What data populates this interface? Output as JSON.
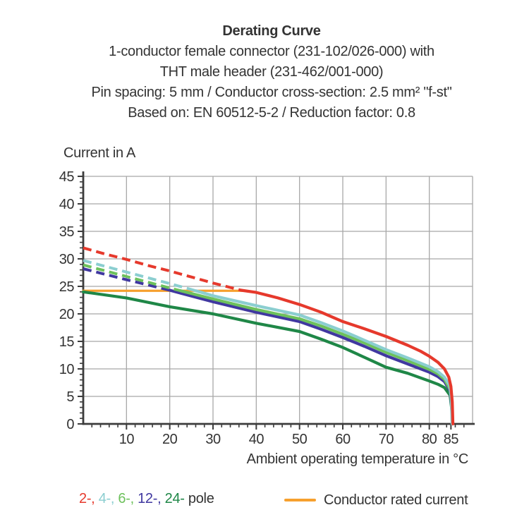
{
  "header": {
    "title": "Derating Curve",
    "subtitle_lines": [
      "1-conductor female connector (231-102/026-000) with",
      "THT male header (231-462/001-000)",
      "Pin spacing: 5 mm / Conductor cross-section: 2.5 mm² \"f-st\"",
      "Based on: EN 60512-5-2 / Reduction factor: 0.8"
    ]
  },
  "chart_data": {
    "type": "line",
    "title": "Derating Curve",
    "ylabel": "Current in A",
    "xlabel": "Ambient operating temperature in °C",
    "xlim": [
      0,
      90
    ],
    "ylim": [
      0,
      45
    ],
    "xticks": [
      10,
      20,
      30,
      40,
      50,
      60,
      70,
      80,
      85
    ],
    "yticks": [
      0,
      5,
      10,
      15,
      20,
      25,
      30,
      35,
      40,
      45
    ],
    "x_minor_step": 2,
    "y_minor_step": 1,
    "grid_on": true,
    "grid_color": "#a8a8a8",
    "axis_color": "#3c3c3c",
    "series": [
      {
        "name": "2-pole",
        "color": "#e6392c",
        "dashed": [
          [
            0,
            32
          ],
          [
            5,
            30.9
          ],
          [
            10,
            29.9
          ],
          [
            15,
            28.8
          ],
          [
            20,
            27.8
          ],
          [
            25,
            26.7
          ],
          [
            30,
            25.6
          ],
          [
            36.5,
            24.3
          ]
        ],
        "solid": [
          [
            36.5,
            24.3
          ],
          [
            40,
            23.9
          ],
          [
            45,
            22.9
          ],
          [
            50,
            21.7
          ],
          [
            55,
            20.3
          ],
          [
            60,
            18.6
          ],
          [
            65,
            17.3
          ],
          [
            70,
            15.9
          ],
          [
            75,
            14.3
          ],
          [
            78,
            13.2
          ],
          [
            80,
            12.3
          ],
          [
            82,
            11.2
          ],
          [
            83.5,
            10.0
          ],
          [
            84.5,
            8.5
          ],
          [
            85.0,
            6.8
          ],
          [
            85.3,
            4.0
          ],
          [
            85.45,
            0
          ]
        ]
      },
      {
        "name": "4-pole",
        "color": "#8bced0",
        "dashed": [
          [
            0,
            29.7
          ],
          [
            10,
            27.6
          ],
          [
            20,
            25.5
          ],
          [
            26,
            24.2
          ]
        ],
        "solid": [
          [
            26,
            24.2
          ],
          [
            30,
            23.3
          ],
          [
            40,
            21.5
          ],
          [
            50,
            19.8
          ],
          [
            55,
            18.4
          ],
          [
            60,
            16.9
          ],
          [
            65,
            15.2
          ],
          [
            70,
            13.5
          ],
          [
            75,
            12.0
          ],
          [
            80,
            10.4
          ],
          [
            82,
            9.5
          ],
          [
            83.5,
            8.5
          ],
          [
            84.7,
            7.0
          ],
          [
            85.1,
            4.5
          ],
          [
            85.25,
            0
          ]
        ]
      },
      {
        "name": "6-pole",
        "color": "#6dc15c",
        "dashed": [
          [
            0,
            28.9
          ],
          [
            10,
            26.8
          ],
          [
            20,
            24.7
          ],
          [
            22.5,
            24.2
          ]
        ],
        "solid": [
          [
            22.5,
            24.2
          ],
          [
            30,
            22.7
          ],
          [
            40,
            20.8
          ],
          [
            50,
            19.1
          ],
          [
            55,
            17.8
          ],
          [
            60,
            16.3
          ],
          [
            65,
            14.7
          ],
          [
            70,
            13.0
          ],
          [
            75,
            11.5
          ],
          [
            80,
            9.9
          ],
          [
            82,
            9.1
          ],
          [
            83.5,
            8.1
          ],
          [
            84.8,
            6.3
          ],
          [
            85.15,
            3.8
          ],
          [
            85.3,
            0
          ]
        ]
      },
      {
        "name": "12-pole",
        "color": "#4038a0",
        "dashed": [
          [
            0,
            28.2
          ],
          [
            10,
            26.2
          ],
          [
            20,
            24.3
          ]
        ],
        "solid": [
          [
            20,
            24.3
          ],
          [
            30,
            22.2
          ],
          [
            40,
            20.3
          ],
          [
            50,
            18.6
          ],
          [
            55,
            17.2
          ],
          [
            60,
            15.7
          ],
          [
            65,
            14.1
          ],
          [
            70,
            12.4
          ],
          [
            75,
            10.9
          ],
          [
            80,
            9.4
          ],
          [
            82,
            8.6
          ],
          [
            83.5,
            7.7
          ],
          [
            84.8,
            6.0
          ],
          [
            85.15,
            3.3
          ],
          [
            85.3,
            0
          ]
        ]
      },
      {
        "name": "24-pole",
        "color": "#1f8747",
        "dashed": [],
        "solid": [
          [
            0,
            24.0
          ],
          [
            10,
            22.9
          ],
          [
            20,
            21.3
          ],
          [
            30,
            20.0
          ],
          [
            40,
            18.3
          ],
          [
            50,
            16.8
          ],
          [
            55,
            15.4
          ],
          [
            60,
            13.9
          ],
          [
            65,
            12.1
          ],
          [
            70,
            10.3
          ],
          [
            75,
            9.2
          ],
          [
            80,
            7.8
          ],
          [
            82,
            7.2
          ],
          [
            83.5,
            6.6
          ],
          [
            84.8,
            5.2
          ],
          [
            85.2,
            2.5
          ],
          [
            85.35,
            0
          ]
        ]
      }
    ],
    "rated_current": {
      "label": "Conductor rated current",
      "color": "#f6a02e",
      "value": 24.2,
      "x_start": 0,
      "x_end": 37.5
    }
  },
  "legend": {
    "pole_items": [
      {
        "label": "2-",
        "color": "#e6392c"
      },
      {
        "label": "4-",
        "color": "#8bced0"
      },
      {
        "label": "6-",
        "color": "#6dc15c"
      },
      {
        "label": "12-",
        "color": "#4038a0"
      },
      {
        "label": "24-",
        "color": "#1f8747"
      }
    ],
    "separator": ", ",
    "pole_suffix": " pole",
    "rated_label": "Conductor rated current",
    "rated_color": "#f6a02e"
  }
}
